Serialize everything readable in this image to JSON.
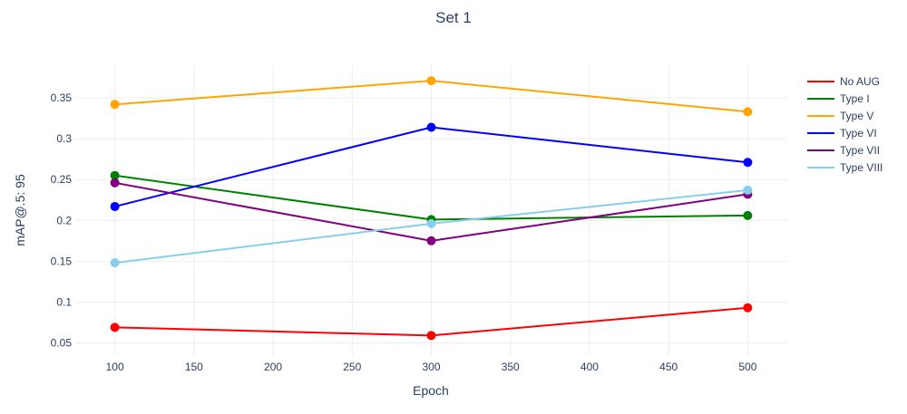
{
  "chart_data": {
    "type": "line",
    "title": "Set 1",
    "xlabel": "Epoch",
    "ylabel": "mAP@.5: 95",
    "x": [
      100,
      300,
      500
    ],
    "xlim": [
      75,
      525
    ],
    "ylim": [
      0.035,
      0.39
    ],
    "x_ticks": [
      100,
      150,
      200,
      250,
      300,
      350,
      400,
      450,
      500
    ],
    "y_ticks": [
      0.05,
      0.1,
      0.15,
      0.2,
      0.25,
      0.3,
      0.35
    ],
    "y_tick_labels": [
      "0.05",
      "0.1",
      "0.15",
      "0.2",
      "0.25",
      "0.3",
      "0.35"
    ],
    "grid": true,
    "legend_position": "right",
    "series": [
      {
        "name": "No AUG",
        "color": "#ff0000",
        "values": [
          0.069,
          0.059,
          0.093
        ]
      },
      {
        "name": "Type I",
        "color": "#008000",
        "values": [
          0.255,
          0.201,
          0.206
        ]
      },
      {
        "name": "Type V",
        "color": "#ffa500",
        "values": [
          0.342,
          0.371,
          0.333
        ]
      },
      {
        "name": "Type VI",
        "color": "#0000ff",
        "values": [
          0.217,
          0.314,
          0.271
        ]
      },
      {
        "name": "Type VII",
        "color": "#800080",
        "values": [
          0.246,
          0.175,
          0.232
        ]
      },
      {
        "name": "Type VIII",
        "color": "#87ceeb",
        "values": [
          0.148,
          0.196,
          0.237
        ]
      }
    ]
  }
}
